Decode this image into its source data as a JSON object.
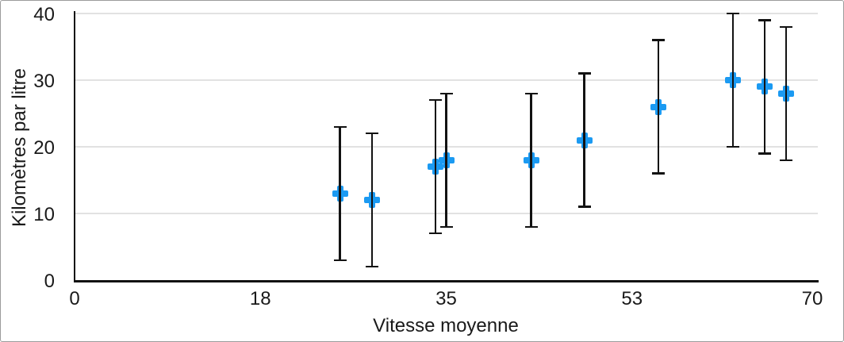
{
  "chart_data": {
    "type": "scatter",
    "title": "",
    "xlabel": "Vitesse moyenne",
    "ylabel": "Kilomètres par litre",
    "series": [
      {
        "name": "Kilomètres par litre",
        "points": [
          {
            "x": 25,
            "y": 13
          },
          {
            "x": 28,
            "y": 12
          },
          {
            "x": 34,
            "y": 17
          },
          {
            "x": 35,
            "y": 18
          },
          {
            "x": 43,
            "y": 18
          },
          {
            "x": 48,
            "y": 21
          },
          {
            "x": 55,
            "y": 26
          },
          {
            "x": 62,
            "y": 30
          },
          {
            "x": 65,
            "y": 29
          },
          {
            "x": 67,
            "y": 28
          }
        ],
        "y_error": 10
      }
    ],
    "xlim": [
      0,
      70
    ],
    "ylim": [
      0,
      40
    ],
    "x_ticks": {
      "values": [
        0,
        17.5,
        35,
        52.5,
        70
      ],
      "labels": [
        "0",
        "18",
        "35",
        "53",
        "70"
      ]
    },
    "y_ticks": {
      "values": [
        0,
        10,
        20,
        30,
        40
      ],
      "labels": [
        "0",
        "10",
        "20",
        "30",
        "40"
      ]
    },
    "grid": "horizontal-only",
    "legend": "none",
    "marker_shape": "plus",
    "colors": {
      "marker": "#1b9af2",
      "error_bar": "#121212",
      "axis": "#121212",
      "gridline": "#e2e2e2",
      "text": "#1a1a1a",
      "background": "#ffffff",
      "frame_border": "#9c9c9c"
    }
  }
}
